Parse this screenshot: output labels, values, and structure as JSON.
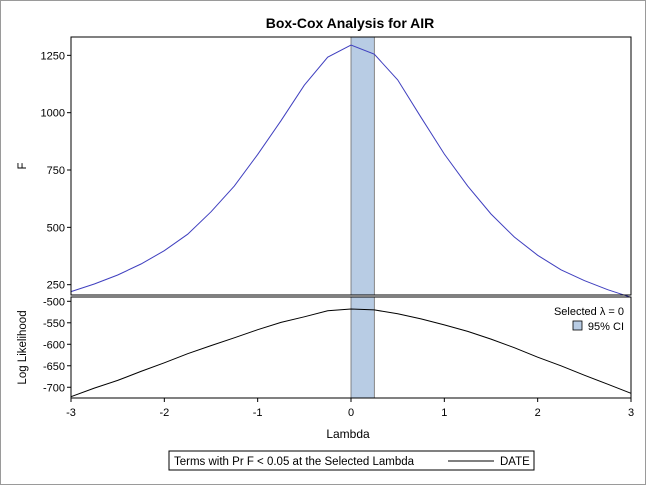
{
  "chart_data": {
    "type": "line",
    "title": "Box-Cox Analysis for AIR",
    "xlabel": "Lambda",
    "xlim": [
      -3,
      3
    ],
    "x_ticks": [
      -3,
      -2,
      -1,
      0,
      1,
      2,
      3
    ],
    "x_tick_labels": [
      "-3",
      "-2",
      "-1",
      "0",
      "1",
      "2",
      "3"
    ],
    "ci_band": {
      "label": "95% CI",
      "x_range": [
        0.0,
        0.25
      ],
      "color": "#b8cce4"
    },
    "selected_label": "Selected λ = 0",
    "legend_title": "Terms with Pr F < 0.05 at the Selected Lambda",
    "legend_entry": "DATE",
    "panels": [
      {
        "name": "F",
        "ylabel": "F",
        "ylim": [
          205,
          1330
        ],
        "y_ticks": [
          250,
          500,
          750,
          1000,
          1250
        ],
        "y_tick_labels": [
          "250",
          "500",
          "750",
          "1000",
          "1250"
        ],
        "line_color": "#3f3fbf",
        "series": [
          {
            "x": [
              -3,
              -2.75,
              -2.5,
              -2.25,
              -2,
              -1.75,
              -1.5,
              -1.25,
              -1,
              -0.75,
              -0.5,
              -0.25,
              0,
              0.25,
              0.5,
              0.75,
              1,
              1.25,
              1.5,
              1.75,
              2,
              2.25,
              2.5,
              2.75,
              3
            ],
            "y": [
              220,
              253,
              292,
              340,
              398,
              470,
              568,
              680,
              818,
              965,
              1120,
              1242,
              1295,
              1255,
              1143,
              980,
              820,
              680,
              558,
              458,
              378,
              315,
              268,
              228,
              195
            ]
          }
        ]
      },
      {
        "name": "Log Likelihood",
        "ylabel": "Log Likelihood",
        "ylim": [
          -725,
          -490
        ],
        "y_ticks": [
          -500,
          -550,
          -600,
          -650,
          -700
        ],
        "y_tick_labels": [
          "-500",
          "-550",
          "-600",
          "-650",
          "-700"
        ],
        "line_color": "#000000",
        "series": [
          {
            "name": "DATE",
            "x": [
              -3,
              -2.75,
              -2.5,
              -2.25,
              -2,
              -1.75,
              -1.5,
              -1.25,
              -1,
              -0.75,
              -0.5,
              -0.25,
              0,
              0.25,
              0.5,
              0.75,
              1,
              1.25,
              1.5,
              1.75,
              2,
              2.25,
              2.5,
              2.75,
              3
            ],
            "y": [
              -722,
              -702,
              -684,
              -663,
              -643,
              -622,
              -603,
              -585,
              -566,
              -549,
              -536,
              -522,
              -518,
              -520,
              -529,
              -541,
              -555,
              -570,
              -588,
              -608,
              -630,
              -650,
              -672,
              -693,
              -714
            ]
          }
        ]
      }
    ]
  }
}
